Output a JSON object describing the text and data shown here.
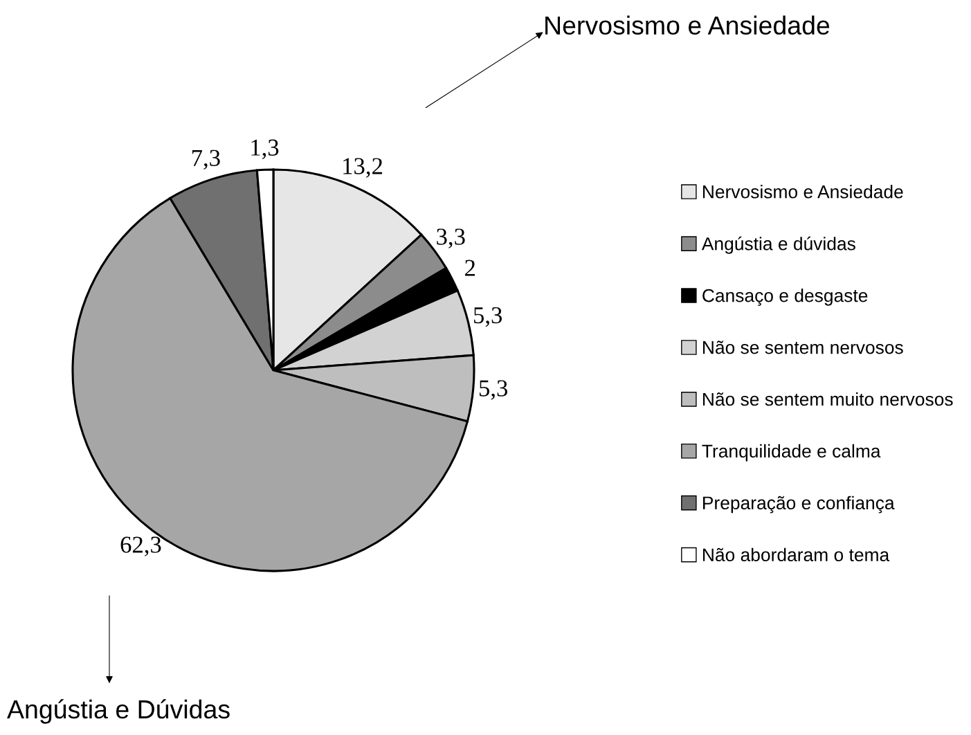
{
  "chart_data": {
    "type": "pie",
    "categories": [
      "Nervosismo e Ansiedade",
      "Angústia e dúvidas",
      "Cansaço e desgaste",
      "Não se sentem nervosos",
      "Não se sentem muito nervosos",
      "Tranquilidade e calma",
      "Preparação e confiança",
      "Não abordaram o tema"
    ],
    "values": [
      13.2,
      3.3,
      2,
      5.3,
      5.3,
      62.3,
      7.3,
      1.3
    ],
    "value_labels": [
      "13,2",
      "3,3",
      "2",
      "5,3",
      "5,3",
      "62,3",
      "7,3",
      "1,3"
    ],
    "colors": [
      "#e6e6e6",
      "#8c8c8c",
      "#000000",
      "#d2d2d2",
      "#bebebe",
      "#a6a6a6",
      "#707070",
      "#ffffff"
    ],
    "legend": "right",
    "annotations": [
      "Nervosismo e Ansiedade",
      "Angústia e Dúvidas"
    ]
  }
}
